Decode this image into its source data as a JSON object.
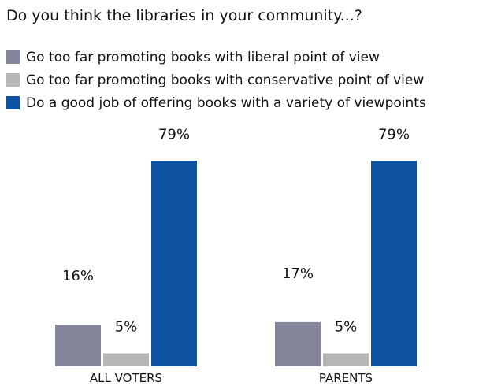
{
  "title": "Do you think the libraries in your community...?",
  "colors": {
    "series_liberal": "#84869b",
    "series_conservative": "#b7b7b7",
    "series_variety": "#0e53a2"
  },
  "chart_data": {
    "type": "bar",
    "title": "Do you think the libraries in your community...?",
    "categories": [
      "ALL VOTERS",
      "PARENTS"
    ],
    "series": [
      {
        "name": "Go too far promoting books with liberal point of view",
        "values": [
          16,
          17
        ],
        "labels": [
          "16%",
          "17%"
        ]
      },
      {
        "name": "Go too far promoting books with conservative point of view",
        "values": [
          5,
          5
        ],
        "labels": [
          "5%",
          "5%"
        ]
      },
      {
        "name": "Do a good job of offering books with a variety of viewpoints",
        "values": [
          79,
          79
        ],
        "labels": [
          "79%",
          "79%"
        ]
      }
    ],
    "unit": "%",
    "ylim": [
      0,
      100
    ],
    "grid": false,
    "legend_position": "top-left",
    "xlabel": "",
    "ylabel": ""
  }
}
